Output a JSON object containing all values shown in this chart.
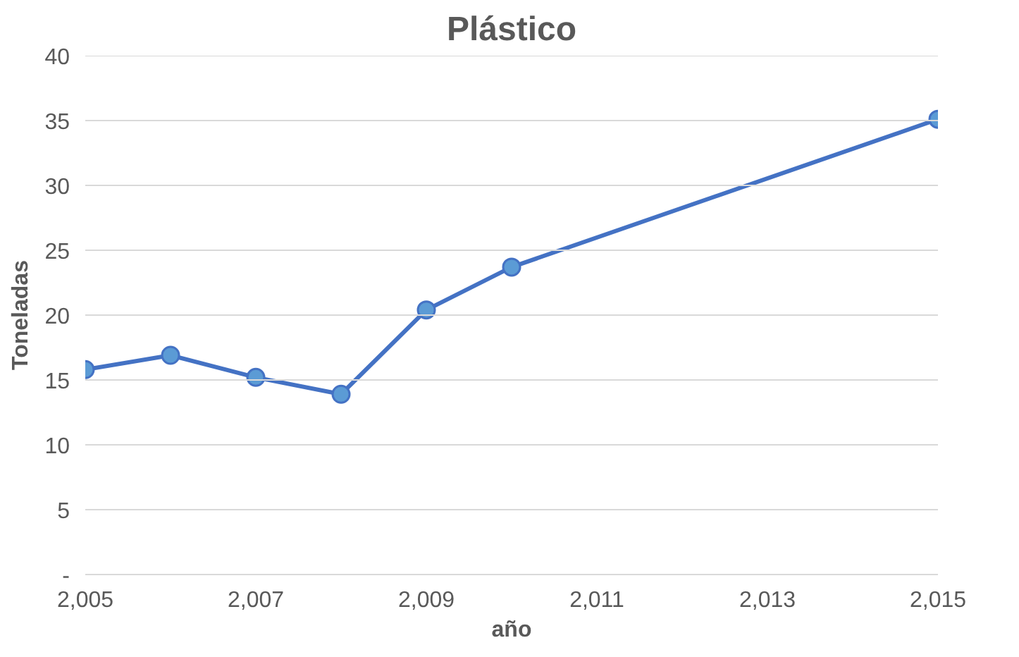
{
  "chart_data": {
    "type": "line",
    "title": "Plástico",
    "xlabel": "año",
    "ylabel": "Toneladas",
    "x": [
      2005,
      2006,
      2007,
      2008,
      2009,
      2010,
      2015
    ],
    "series": [
      {
        "color": "#4472c4",
        "values": [
          15.8,
          16.9,
          15.2,
          13.9,
          20.4,
          23.7,
          35.1
        ]
      }
    ],
    "xlim": [
      2005,
      2015
    ],
    "xticks": [
      {
        "value": 2005,
        "label": "2,005"
      },
      {
        "value": 2007,
        "label": "2,007"
      },
      {
        "value": 2009,
        "label": "2,009"
      },
      {
        "value": 2011,
        "label": "2,011"
      },
      {
        "value": 2013,
        "label": "2,013"
      },
      {
        "value": 2015,
        "label": "2,015"
      }
    ],
    "ylim": [
      0,
      40
    ],
    "yticks": [
      {
        "value": 0,
        "label": "-"
      },
      5,
      10,
      15,
      20,
      25,
      30,
      35,
      40
    ],
    "grid": "y",
    "marker": "circle",
    "line_style": "solid"
  }
}
